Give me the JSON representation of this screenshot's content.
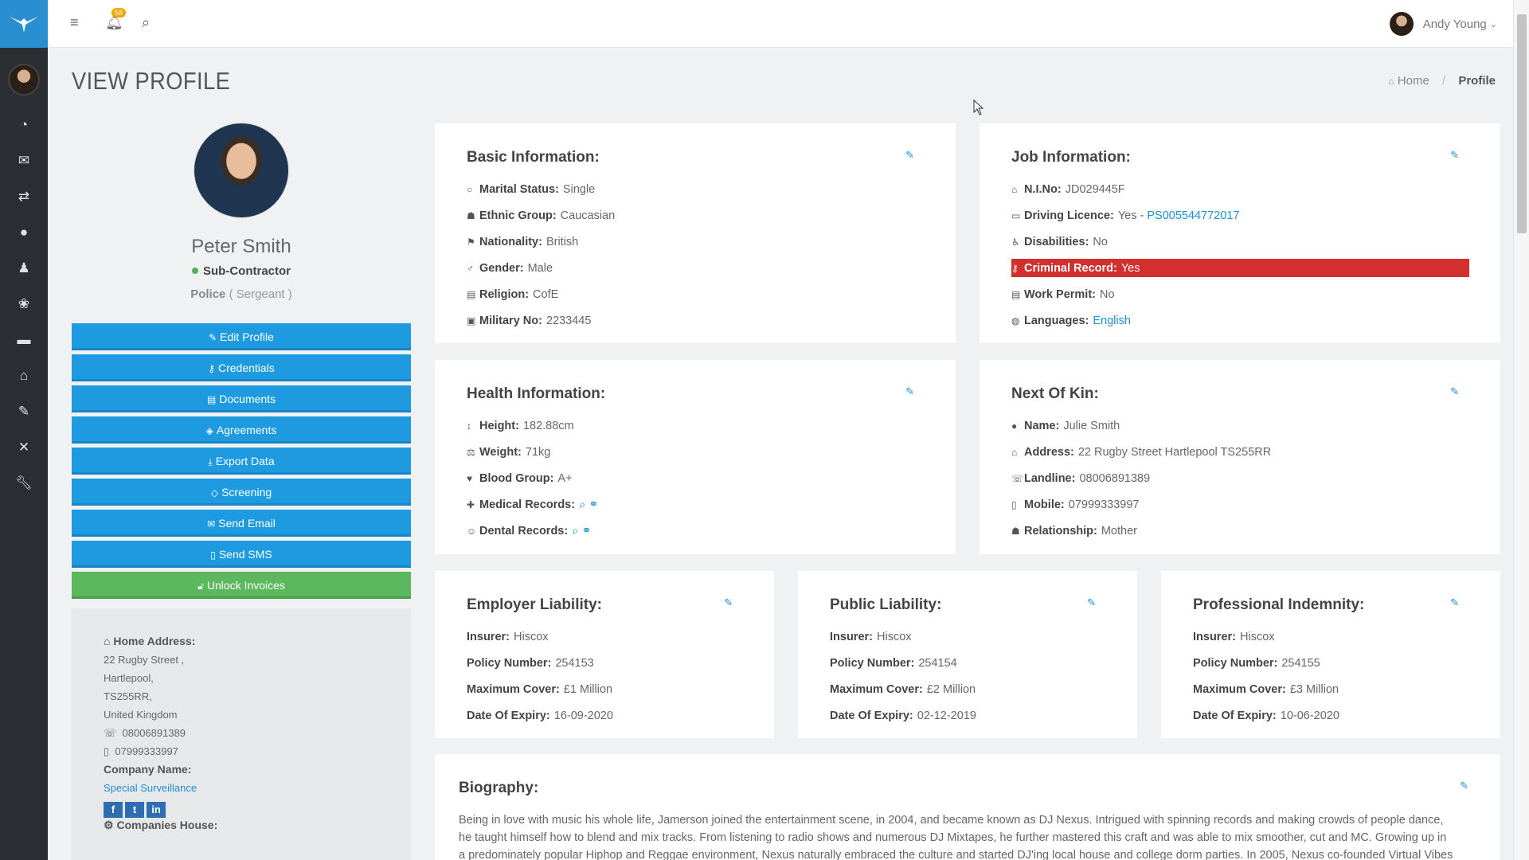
{
  "user": {
    "name": "Andy Young"
  },
  "notifications": {
    "count": "58"
  },
  "page": {
    "title": "VIEW PROFILE"
  },
  "breadcrumb": {
    "home": "Home",
    "current": "Profile"
  },
  "profile": {
    "name": "Peter Smith",
    "type": "Sub-Contractor",
    "org": "Police",
    "rank": "( Sergeant )"
  },
  "actions": [
    {
      "label": "Edit Profile",
      "icon": "edit-icon"
    },
    {
      "label": "Credentials",
      "icon": "key-icon"
    },
    {
      "label": "Documents",
      "icon": "book-icon"
    },
    {
      "label": "Agreements",
      "icon": "handshake-icon"
    },
    {
      "label": "Export Data",
      "icon": "download-icon"
    },
    {
      "label": "Screening",
      "icon": "diamond-icon"
    },
    {
      "label": "Send Email",
      "icon": "envelope-icon"
    },
    {
      "label": "Send SMS",
      "icon": "mobile-icon"
    },
    {
      "label": "Unlock Invoices",
      "icon": "unlock-icon"
    }
  ],
  "address": {
    "heading": "Home Address:",
    "line1": "22 Rugby Street ,",
    "line2": "Hartlepool,",
    "line3": "TS255RR,",
    "line4": "United Kingdom",
    "landline": "08006891389",
    "mobile": "07999333997",
    "company_label": "Company Name:",
    "company": "Special Surveillance",
    "companies_house": "Companies House:"
  },
  "basic": {
    "title": "Basic Information:",
    "rows": [
      {
        "k": "Marital Status:",
        "v": "Single"
      },
      {
        "k": "Ethnic Group:",
        "v": "Caucasian"
      },
      {
        "k": "Nationality:",
        "v": "British"
      },
      {
        "k": "Gender:",
        "v": "Male"
      },
      {
        "k": "Religion:",
        "v": "CofE"
      },
      {
        "k": "Military No:",
        "v": "2233445"
      }
    ]
  },
  "job": {
    "title": "Job Information:",
    "ni_k": "N.I.No:",
    "ni_v": "JD029445F",
    "dl_k": "Driving Licence:",
    "dl_v": "Yes -",
    "dl_link": "PS005544772017",
    "dis_k": "Disabilities:",
    "dis_v": "No",
    "cr_k": "Criminal Record:",
    "cr_v": "Yes",
    "wp_k": "Work Permit:",
    "wp_v": "No",
    "lang_k": "Languages:",
    "lang_v": "English"
  },
  "health": {
    "title": "Health Information:",
    "h_k": "Height:",
    "h_v": "182.88cm",
    "w_k": "Weight:",
    "w_v": "71kg",
    "b_k": "Blood Group:",
    "b_v": "A+",
    "m_k": "Medical Records:",
    "d_k": "Dental Records:"
  },
  "kin": {
    "title": "Next Of Kin:",
    "rows": [
      {
        "k": "Name:",
        "v": "Julie Smith"
      },
      {
        "k": "Address:",
        "v": "22 Rugby Street Hartlepool TS255RR"
      },
      {
        "k": "Landline:",
        "v": "08006891389"
      },
      {
        "k": "Mobile:",
        "v": "07999333997"
      },
      {
        "k": "Relationship:",
        "v": "Mother"
      }
    ]
  },
  "insurance": [
    {
      "title": "Employer Liability:",
      "insurer": "Hiscox",
      "policy": "254153",
      "cover": "£1 Million",
      "expiry": "16-09-2020"
    },
    {
      "title": "Public Liability:",
      "insurer": "Hiscox",
      "policy": "254154",
      "cover": "£2 Million",
      "expiry": "02-12-2019"
    },
    {
      "title": "Professional Indemnity:",
      "insurer": "Hiscox",
      "policy": "254155",
      "cover": "£3 Million",
      "expiry": "10-06-2020"
    }
  ],
  "insurance_labels": {
    "insurer": "Insurer:",
    "policy": "Policy Number:",
    "cover": "Maximum Cover:",
    "expiry": "Date Of Expiry:"
  },
  "bio": {
    "title": "Biography:",
    "text": "Being in love with music his whole life, Jamerson joined the entertainment scene, in 2004, and became known as DJ Nexus. Intrigued with spinning records and making crowds of people dance, he taught himself how to blend and mix tracks. From listening to radio shows and numerous DJ Mixtapes, he further mastered this craft and was able to mix smoother, cut and MC. Growing up in a predominately popular Hiphop and Reggae environment, Nexus naturally embraced the culture and started DJ'ing local house and college dorm parties. In 2005, Nexus co-founded Virtual Vibes"
  }
}
